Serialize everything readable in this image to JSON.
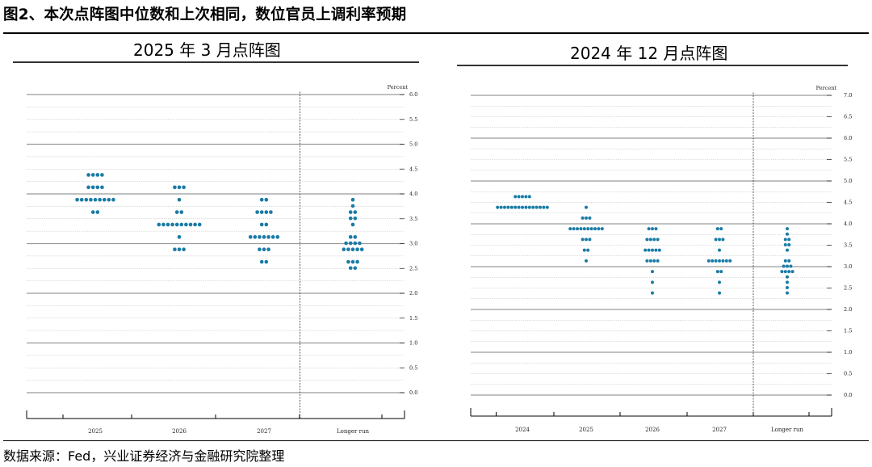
{
  "figure_title": "图2、本次点阵图中位数和上次相同，数位官员上调利率预期",
  "source": "数据来源：Fed，兴业证券经济与金融研究院整理",
  "chart_data": [
    {
      "type": "scatter",
      "title": "2025 年 3 月点阵图",
      "ylabel": "Percent",
      "ylim": [
        0,
        6.0
      ],
      "y_ticks": [
        "6.0",
        "5.5",
        "5.0",
        "4.5",
        "4.0",
        "3.5",
        "3.0",
        "2.5",
        "2.0",
        "1.5",
        "1.0",
        "0.5",
        "0.0"
      ],
      "categories": [
        "2025",
        "2026",
        "2027",
        "Longer run"
      ],
      "grid": true,
      "series": [
        {
          "category": "2025",
          "dots": [
            {
              "y": 4.375,
              "count": 4
            },
            {
              "y": 4.125,
              "count": 4
            },
            {
              "y": 3.875,
              "count": 9
            },
            {
              "y": 3.625,
              "count": 2
            }
          ]
        },
        {
          "category": "2026",
          "dots": [
            {
              "y": 4.125,
              "count": 3
            },
            {
              "y": 3.875,
              "count": 1
            },
            {
              "y": 3.625,
              "count": 2
            },
            {
              "y": 3.375,
              "count": 10
            },
            {
              "y": 3.125,
              "count": 1
            },
            {
              "y": 2.875,
              "count": 3
            }
          ]
        },
        {
          "category": "2027",
          "dots": [
            {
              "y": 3.875,
              "count": 2
            },
            {
              "y": 3.625,
              "count": 4
            },
            {
              "y": 3.375,
              "count": 2
            },
            {
              "y": 3.125,
              "count": 7
            },
            {
              "y": 2.875,
              "count": 3
            },
            {
              "y": 2.625,
              "count": 2
            }
          ]
        },
        {
          "category": "Longer run",
          "dots": [
            {
              "y": 3.875,
              "count": 1
            },
            {
              "y": 3.75,
              "count": 1
            },
            {
              "y": 3.625,
              "count": 2
            },
            {
              "y": 3.5,
              "count": 2
            },
            {
              "y": 3.375,
              "count": 1
            },
            {
              "y": 3.125,
              "count": 2
            },
            {
              "y": 3.0,
              "count": 4
            },
            {
              "y": 2.875,
              "count": 5
            },
            {
              "y": 2.625,
              "count": 3
            },
            {
              "y": 2.5,
              "count": 2
            }
          ]
        }
      ]
    },
    {
      "type": "scatter",
      "title": "2024 年 12 月点阵图",
      "ylabel": "Percent",
      "ylim": [
        0,
        7.0
      ],
      "y_ticks": [
        "7.0",
        "6.5",
        "6.0",
        "5.5",
        "5.0",
        "4.5",
        "4.0",
        "3.5",
        "3.0",
        "2.5",
        "2.0",
        "1.5",
        "1.0",
        "0.5",
        "0.0"
      ],
      "categories": [
        "2024",
        "2025",
        "2026",
        "2027",
        "Longer run"
      ],
      "grid": true,
      "series": [
        {
          "category": "2024",
          "dots": [
            {
              "y": 4.625,
              "count": 5
            },
            {
              "y": 4.375,
              "count": 15
            }
          ]
        },
        {
          "category": "2025",
          "dots": [
            {
              "y": 4.375,
              "count": 1
            },
            {
              "y": 4.125,
              "count": 3
            },
            {
              "y": 3.875,
              "count": 10
            },
            {
              "y": 3.625,
              "count": 3
            },
            {
              "y": 3.375,
              "count": 2
            },
            {
              "y": 3.125,
              "count": 1
            }
          ]
        },
        {
          "category": "2026",
          "dots": [
            {
              "y": 3.875,
              "count": 3
            },
            {
              "y": 3.625,
              "count": 4
            },
            {
              "y": 3.375,
              "count": 5
            },
            {
              "y": 3.125,
              "count": 4
            },
            {
              "y": 2.875,
              "count": 1
            },
            {
              "y": 2.625,
              "count": 1
            },
            {
              "y": 2.375,
              "count": 1
            }
          ]
        },
        {
          "category": "2027",
          "dots": [
            {
              "y": 3.875,
              "count": 2
            },
            {
              "y": 3.625,
              "count": 3
            },
            {
              "y": 3.375,
              "count": 1
            },
            {
              "y": 3.125,
              "count": 7
            },
            {
              "y": 2.875,
              "count": 2
            },
            {
              "y": 2.625,
              "count": 1
            },
            {
              "y": 2.375,
              "count": 1
            }
          ]
        },
        {
          "category": "Longer run",
          "dots": [
            {
              "y": 3.875,
              "count": 1
            },
            {
              "y": 3.75,
              "count": 1
            },
            {
              "y": 3.625,
              "count": 2
            },
            {
              "y": 3.5,
              "count": 2
            },
            {
              "y": 3.375,
              "count": 1
            },
            {
              "y": 3.125,
              "count": 2
            },
            {
              "y": 3.0,
              "count": 3
            },
            {
              "y": 2.875,
              "count": 4
            },
            {
              "y": 2.75,
              "count": 1
            },
            {
              "y": 2.625,
              "count": 1
            },
            {
              "y": 2.5,
              "count": 1
            },
            {
              "y": 2.375,
              "count": 1
            }
          ]
        }
      ]
    }
  ],
  "colors": {
    "dot": "#1a7ba6",
    "grid_major": "#9a9a9a",
    "grid_minor": "#b5b5b5",
    "axis": "#333333"
  }
}
